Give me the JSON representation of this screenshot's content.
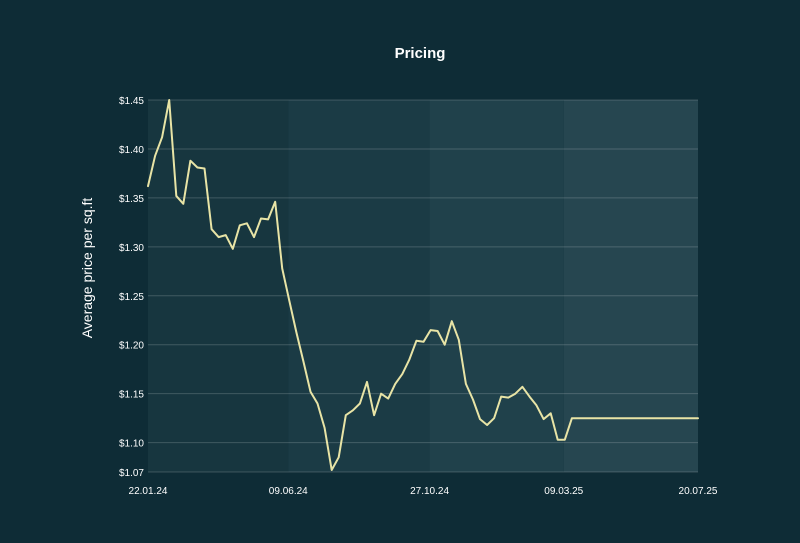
{
  "chart_data": {
    "type": "line",
    "title": "Pricing",
    "xlabel": "",
    "ylabel": "Average price per sq.ft",
    "x_tick_labels": [
      "22.01.24",
      "09.06.24",
      "27.10.24",
      "09.03.25",
      "20.07.25"
    ],
    "x_ticks": [
      "2024-01-22",
      "2024-06-09",
      "2024-10-27",
      "2025-03-09",
      "2025-07-20"
    ],
    "y_tick_labels": [
      "$1.07",
      "$1.10",
      "$1.15",
      "$1.20",
      "$1.25",
      "$1.30",
      "$1.35",
      "$1.40",
      "$1.45"
    ],
    "y_ticks": [
      1.07,
      1.1,
      1.15,
      1.2,
      1.25,
      1.3,
      1.35,
      1.4,
      1.45
    ],
    "ylim": [
      1.07,
      1.45
    ],
    "xlim": [
      "2024-01-22",
      "2025-07-20"
    ],
    "grid": "horizontal",
    "line_color": "#e8e4a6",
    "background_color": "#0e2c36",
    "panel_colors": [
      "#17363f",
      "#1b3b45",
      "#20414b",
      "#264650"
    ],
    "series": [
      {
        "x": [
          "2024-01-22",
          "2024-01-29",
          "2024-02-05",
          "2024-02-12",
          "2024-02-19",
          "2024-02-26",
          "2024-03-04",
          "2024-03-11",
          "2024-03-18",
          "2024-03-25",
          "2024-04-01",
          "2024-04-08",
          "2024-04-15",
          "2024-04-22",
          "2024-04-29",
          "2024-05-06",
          "2024-05-13",
          "2024-05-20",
          "2024-05-27",
          "2024-06-03",
          "2024-06-10",
          "2024-06-17",
          "2024-06-24",
          "2024-07-01",
          "2024-07-08",
          "2024-07-15",
          "2024-07-22",
          "2024-07-29",
          "2024-08-05",
          "2024-08-12",
          "2024-08-19",
          "2024-08-26",
          "2024-09-02",
          "2024-09-09",
          "2024-09-16",
          "2024-09-23",
          "2024-09-30",
          "2024-10-07",
          "2024-10-14",
          "2024-10-21",
          "2024-10-28",
          "2024-11-04",
          "2024-11-11",
          "2024-11-18",
          "2024-11-25",
          "2024-12-02",
          "2024-12-09",
          "2024-12-16",
          "2024-12-23",
          "2024-12-30",
          "2025-01-06",
          "2025-01-13",
          "2025-01-20",
          "2025-01-27",
          "2025-02-03",
          "2025-02-10",
          "2025-02-17",
          "2025-02-24",
          "2025-03-03",
          "2025-03-10",
          "2025-03-17",
          "2025-03-24",
          "2025-03-31",
          "2025-04-07",
          "2025-04-14",
          "2025-04-21",
          "2025-04-28",
          "2025-05-05",
          "2025-05-12",
          "2025-05-19",
          "2025-05-26",
          "2025-06-02",
          "2025-06-09",
          "2025-06-16",
          "2025-06-23",
          "2025-06-30",
          "2025-07-07",
          "2025-07-14",
          "2025-07-20"
        ],
        "y": [
          1.362,
          1.393,
          1.412,
          1.45,
          1.352,
          1.344,
          1.388,
          1.381,
          1.38,
          1.318,
          1.31,
          1.312,
          1.298,
          1.322,
          1.324,
          1.31,
          1.329,
          1.328,
          1.346,
          1.278,
          1.245,
          1.213,
          1.183,
          1.152,
          1.14,
          1.115,
          1.072,
          1.085,
          1.128,
          1.133,
          1.14,
          1.162,
          1.128,
          1.15,
          1.145,
          1.16,
          1.17,
          1.185,
          1.204,
          1.203,
          1.215,
          1.214,
          1.2,
          1.224,
          1.205,
          1.16,
          1.144,
          1.124,
          1.118,
          1.125,
          1.147,
          1.146,
          1.15,
          1.157,
          1.147,
          1.138,
          1.124,
          1.13,
          1.103,
          1.103,
          1.125,
          1.125,
          1.125,
          1.125,
          1.125,
          1.125,
          1.125,
          1.125,
          1.125,
          1.125,
          1.125,
          1.125,
          1.125,
          1.125,
          1.125,
          1.125,
          1.125,
          1.125,
          1.125
        ]
      }
    ]
  }
}
